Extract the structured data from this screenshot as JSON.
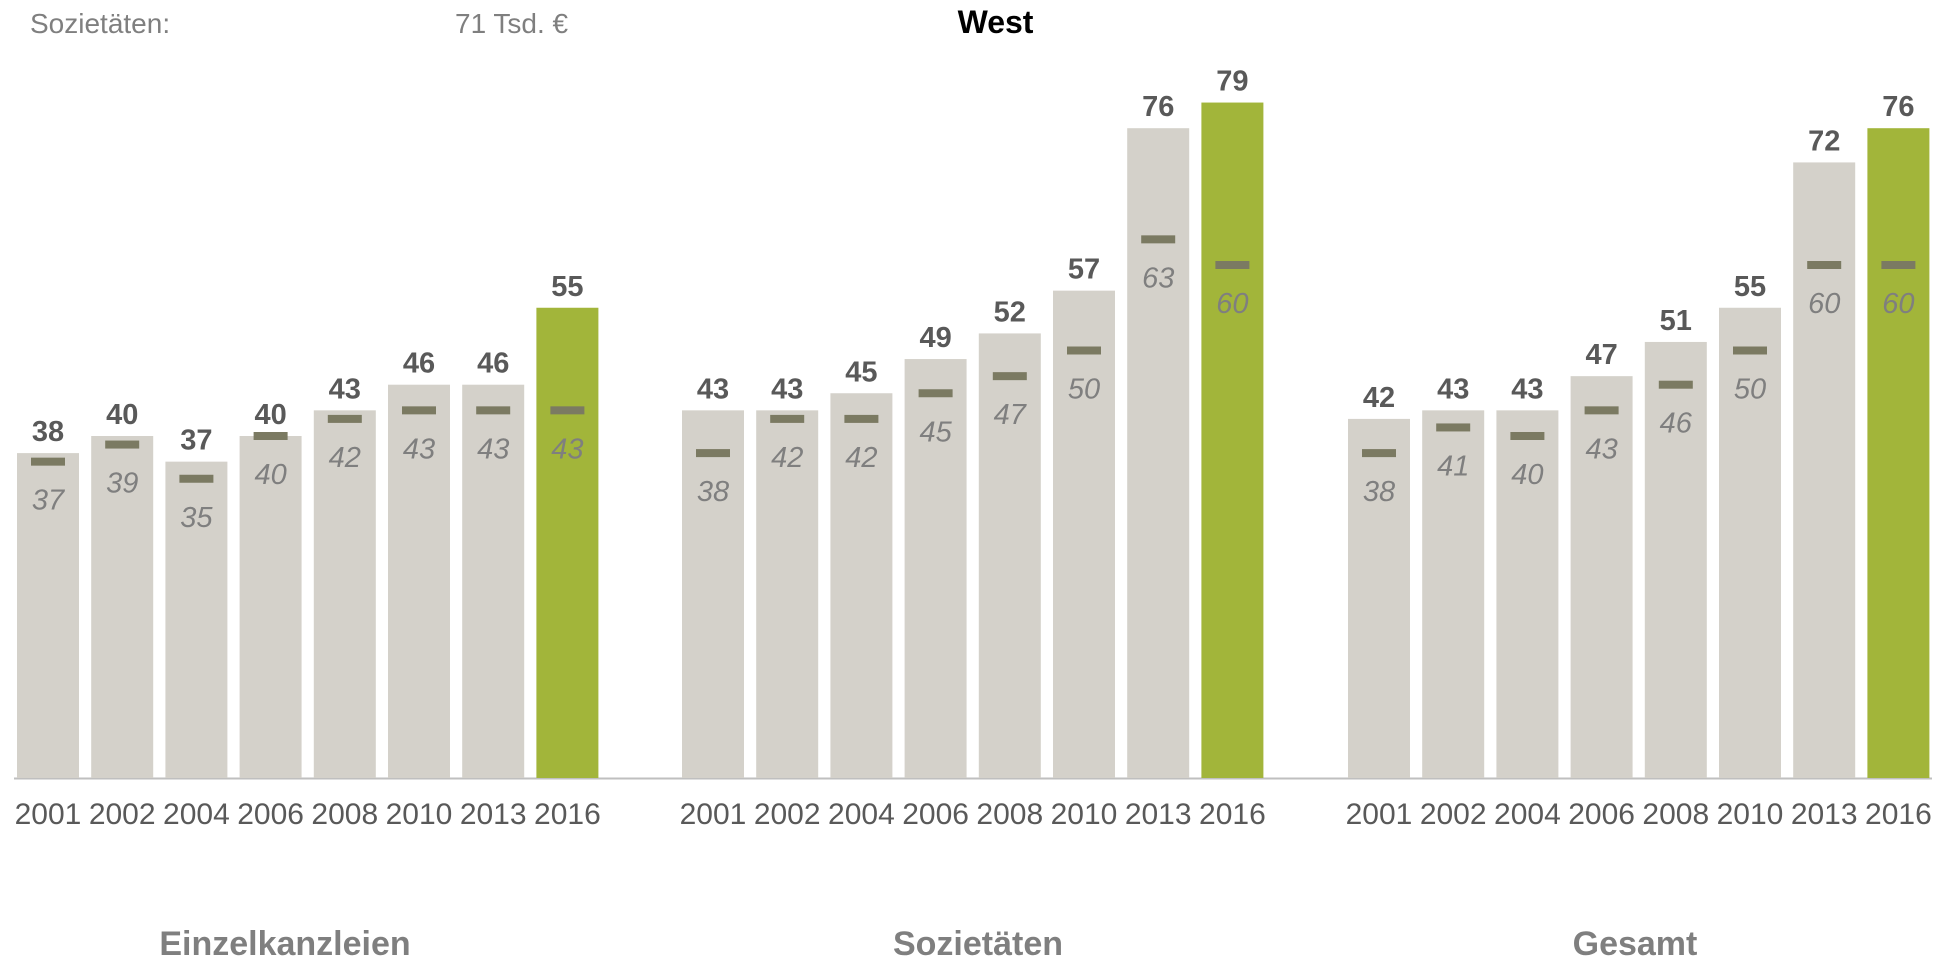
{
  "legend": {
    "label": "Sozietäten:",
    "value": "71 Tsd. €"
  },
  "chart_data": {
    "type": "bar",
    "title": "West",
    "xlabel": "",
    "ylabel": "",
    "ylim": [
      0,
      85
    ],
    "grid": false,
    "colors": {
      "bar": "#d4d1ca",
      "highlight": "#a2b53a",
      "avg_marker": "#7b7a62"
    },
    "groups": [
      {
        "name": "Einzelkanzleien",
        "categories": [
          "2001",
          "2002",
          "2004",
          "2006",
          "2008",
          "2010",
          "2013",
          "2016"
        ],
        "values": [
          38,
          40,
          37,
          40,
          43,
          46,
          46,
          55
        ],
        "averages": [
          37,
          39,
          35,
          40,
          42,
          43,
          43,
          43
        ],
        "highlight_index": 7
      },
      {
        "name": "Sozietäten",
        "categories": [
          "2001",
          "2002",
          "2004",
          "2006",
          "2008",
          "2010",
          "2013",
          "2016"
        ],
        "values": [
          43,
          43,
          45,
          49,
          52,
          57,
          76,
          79
        ],
        "averages": [
          38,
          42,
          42,
          45,
          47,
          50,
          63,
          60
        ],
        "highlight_index": 7
      },
      {
        "name": "Gesamt",
        "categories": [
          "2001",
          "2002",
          "2004",
          "2006",
          "2008",
          "2010",
          "2013",
          "2016"
        ],
        "values": [
          42,
          43,
          43,
          47,
          51,
          55,
          72,
          76
        ],
        "averages": [
          38,
          41,
          40,
          43,
          46,
          50,
          60,
          60
        ],
        "highlight_index": 7
      }
    ]
  }
}
